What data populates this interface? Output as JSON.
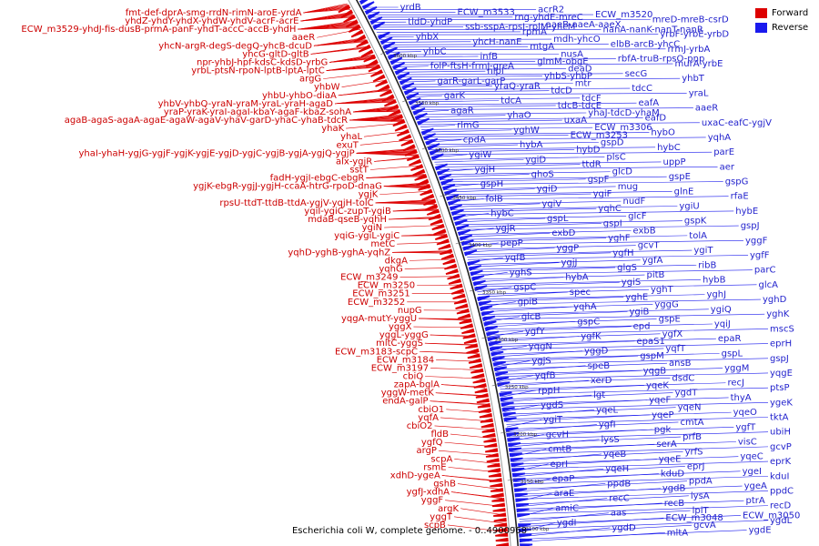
{
  "title": "Escherichia coli W, complete genome. - 0..4900968",
  "legend": {
    "forward_label": "Forward",
    "reverse_label": "Reverse",
    "forward_color": "#dd0000",
    "reverse_color": "#1a1aee"
  },
  "position_ticks": [
    "3600 kbp",
    "3550 kbp",
    "3500 kbp",
    "3450 kbp",
    "3400 kbp",
    "3350 kbp",
    "3300 kbp",
    "3250 kbp",
    "3200 kbp",
    "3150 kbp",
    "3100 kbp"
  ],
  "forward_genes": [
    "fmt-def-dprA-smg-rrdN-rimN-aroE-yrdA",
    "yhdZ-yhdY-yhdX-yhdW-yhdV-acrF-acrE",
    "ECW_m3529-yhdJ-fis-dusB-prmA-panF-yhdT-accC-accB-yhdH",
    "aaeR",
    "yhcN-argR-degS-degQ-yhcB-dcuD",
    "yhcG-gltD-gltB",
    "npr-yhbJ-hpf-kdsC-kdsD-yrbG",
    "yrbL-ptsN-rpoN-lptB-lptA-lptC",
    "argG",
    "yhbW",
    "yhbU-yhbO-diaA",
    "yhbV-yhbQ-yraN-yraM-yraL-yraH-agaD",
    "yraP-yraK-yraI-agaI-kbaY-agaF-kbaZ-sohA",
    "agaB-agaS-agaA-agaE-agaW-agaV-yhaV-garD-yhaC-yhaB-tdcR",
    "yhaK",
    "yhaL",
    "exuT",
    "yhaI-yhaH-ygjG-ygjF-ygjK-ygjE-ygjD-ygjC-ygjB-ygjA-ygjQ-ygjP",
    "alx-ygjR",
    "sstT",
    "fadH-ygjI-ebgC-ebgR",
    "ygjK-ebgR-ygjJ-ygjH-ccaA-htrG-rpoD-dnaG",
    "ygjK",
    "rpsU-ttdT-ttdB-ttdA-ygjV-yqjH-tolC",
    "yqiI-ygiC-zupT-ygiB",
    "mdaB-qseB-yqhH",
    "ygiN",
    "yqiG-ygiL-ygiC",
    "metC",
    "yqhD-yghB-yghA-yqhZ",
    "dkgA",
    "yqhG",
    "ECW_m3249",
    "ECW_m3250",
    "ECW_m3251",
    "ECW_m3252",
    "nupG",
    "yqgA-mutY-yggU",
    "yggX",
    "yggL-yggG",
    "mltC-yggS",
    "ECW_m3183-scpC",
    "ECW_m3184",
    "ECW_m3197",
    "cbiQ",
    "zapA-bglA",
    "yggW-metK",
    "endA-galP",
    "cbiO1",
    "yqfA",
    "cbiO2",
    "fldB",
    "ygfQ",
    "argP",
    "scpA",
    "rsmE",
    "xdhD-ygeA",
    "gshB",
    "ygfJ-xdhA",
    "yggF",
    "argK",
    "yggT",
    "scpB"
  ],
  "reverse_genes": [
    "yrdB",
    "acrR2",
    "ECW_m3533",
    "ECW_m3520",
    "rng-yhdE-mreC",
    "mreD-mreB-csrD",
    "tldD-yhdP",
    "aaeB-aaeA-aaeX",
    "ssb-sspA-rpsI-rplM-yhcM",
    "nanA-nanK-nanT-nanR",
    "rpmA",
    "yrbF-yrbE-yrbD",
    "yhbX",
    "mdh-yhcO",
    "yhcH-nanE",
    "elbB-arcB-yhcC",
    "mtgA",
    "rrmJ-yrbA",
    "yhbC",
    "nusA",
    "infB",
    "rbfA-truB-rpsO-pnp",
    "glmM-obgE",
    "murA-yrbE",
    "folP-ftsH-frmJ-greA",
    "deaD",
    "nlpI",
    "secG",
    "yhbS-yhbP",
    "yhbT",
    "garR-garL-garP",
    "mtr",
    "yraQ-yraR",
    "tdcC",
    "tdcD",
    "yraL",
    "garK",
    "tdcF",
    "tdcA",
    "eafA",
    "tdcB-tdcE",
    "aaeR",
    "agaR",
    "yhaJ-tdcD-yhaM",
    "yhaO",
    "eafD",
    "uxaA",
    "uxaC-eafC-ygjV",
    "rlmG",
    "ECW_m3306",
    "yghW",
    "hybO",
    "ECW_m3253",
    "yqhA",
    "cpdA",
    "gspD",
    "hybA",
    "hybC",
    "hybD",
    "parE",
    "ygiW",
    "plsC",
    "ygiD",
    "uppP",
    "ttdR",
    "aer",
    "ygjH",
    "glcD",
    "ghoS",
    "gspE",
    "gspF",
    "gspG",
    "gspH",
    "mug",
    "ygiD",
    "glnE",
    "ygiF",
    "rfaE",
    "folB",
    "nudF",
    "ygiV",
    "ygiU",
    "yqhC",
    "hybE",
    "hybC",
    "glcF",
    "gspL",
    "gspK",
    "gspI",
    "gspJ",
    "ygjR",
    "exbB",
    "exbD",
    "tolA",
    "yghF",
    "yggF",
    "pepP",
    "gcvT",
    "yggP",
    "ygiT",
    "ygfH",
    "ygfF",
    "yqfB",
    "ygfA",
    "ygjJ",
    "ribB",
    "glgS",
    "parC",
    "yghS",
    "pitB",
    "hybA",
    "hybB",
    "ygiS",
    "glcA",
    "gspC",
    "yghT",
    "spec",
    "yghJ",
    "yghE",
    "yghD",
    "gpiB",
    "yggG",
    "yqhA",
    "ygiQ",
    "ygiB",
    "yghK",
    "glcB",
    "gspE",
    "gspC",
    "yqiJ",
    "epd",
    "mscS",
    "ygfY",
    "ygfX",
    "ygfK",
    "epaR",
    "epaS1",
    "eprH",
    "yqgN",
    "yqfT",
    "yggD",
    "gspL",
    "gspM",
    "gspJ",
    "ygjS",
    "ansB",
    "speB",
    "yggM",
    "yqgB",
    "yqgE",
    "yqfB",
    "dsdC",
    "xerD",
    "recJ",
    "yqeK",
    "ptsP",
    "rppH",
    "ygdT",
    "lgt",
    "thyA",
    "yqeF",
    "ygeK",
    "ygdS",
    "yqeN",
    "yqeL",
    "yqeO",
    "yqeP",
    "tktA",
    "ygiT",
    "cmtA",
    "ygfI",
    "ygfT",
    "pgk",
    "ubiH",
    "gcvH",
    "prfB",
    "lysS",
    "visC",
    "serA",
    "gcvP",
    "cmtB",
    "yrfS",
    "yqeB",
    "yqeC",
    "yqeE",
    "eprK",
    "eprI",
    "eprJ",
    "yqeH",
    "ygeI",
    "kduD",
    "kduI",
    "epaP",
    "ppdA",
    "ppdB",
    "ygeA",
    "ygdB",
    "ppdC",
    "araE",
    "lysA",
    "recC",
    "ptrA",
    "recB",
    "recD",
    "amiC",
    "lplT",
    "aas",
    "ECW_m3050",
    "ECW_m3048",
    "ygdL",
    "ygdI",
    "gcvA",
    "ygdD",
    "ygdE",
    "mltA"
  ]
}
